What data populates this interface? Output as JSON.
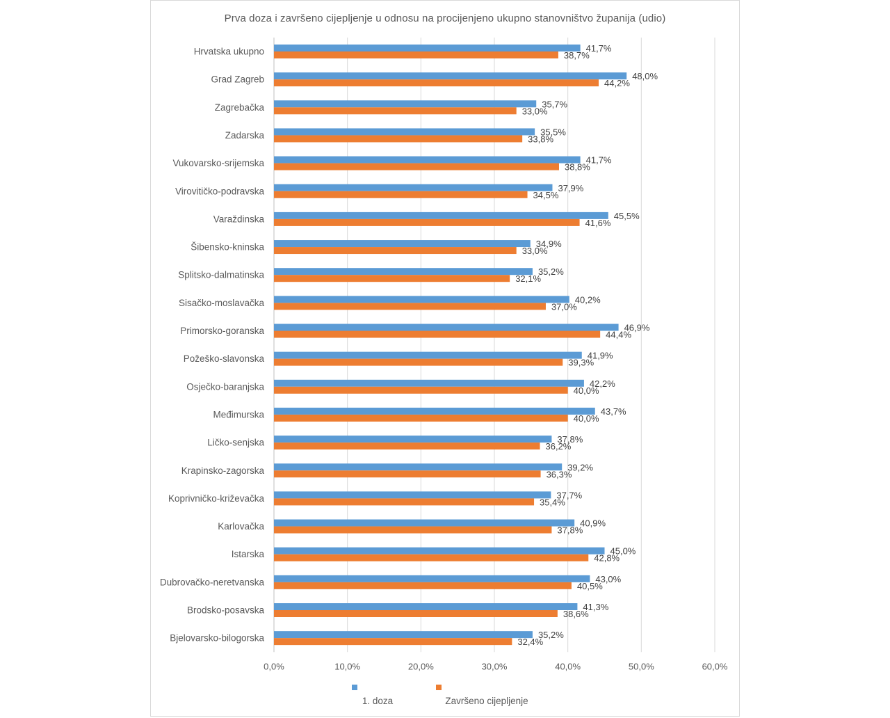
{
  "chart_data": {
    "type": "bar",
    "orientation": "horizontal",
    "title": "Prva doza i završeno cijepljenje u odnosu na procijenjeno ukupno stanovništvo županija (udio)",
    "categories": [
      "Hrvatska ukupno",
      "Grad Zagreb",
      "Zagrebačka",
      "Zadarska",
      "Vukovarsko-srijemska",
      "Virovitičko-podravska",
      "Varaždinska",
      "Šibensko-kninska",
      "Splitsko-dalmatinska",
      "Sisačko-moslavačka",
      "Primorsko-goranska",
      "Požeško-slavonska",
      "Osječko-baranjska",
      "Međimurska",
      "Ličko-senjska",
      "Krapinsko-zagorska",
      "Koprivničko-križevačka",
      "Karlovačka",
      "Istarska",
      "Dubrovačko-neretvanska",
      "Brodsko-posavska",
      "Bjelovarsko-bilogorska"
    ],
    "series": [
      {
        "name": "1. doza",
        "color": "#5b9bd5",
        "values": [
          41.7,
          48.0,
          35.7,
          35.5,
          41.7,
          37.9,
          45.5,
          34.9,
          35.2,
          40.2,
          46.9,
          41.9,
          42.2,
          43.7,
          37.8,
          39.2,
          37.7,
          40.9,
          45.0,
          43.0,
          41.3,
          35.2
        ],
        "labels": [
          "41,7%",
          "48,0%",
          "35,7%",
          "35,5%",
          "41,7%",
          "37,9%",
          "45,5%",
          "34,9%",
          "35,2%",
          "40,2%",
          "46,9%",
          "41,9%",
          "42,2%",
          "43,7%",
          "37,8%",
          "39,2%",
          "37,7%",
          "40,9%",
          "45,0%",
          "43,0%",
          "41,3%",
          "35,2%"
        ]
      },
      {
        "name": "Završeno cijepljenje",
        "color": "#ed7d31",
        "values": [
          38.7,
          44.2,
          33.0,
          33.8,
          38.8,
          34.5,
          41.6,
          33.0,
          32.1,
          37.0,
          44.4,
          39.3,
          40.0,
          40.0,
          36.2,
          36.3,
          35.4,
          37.8,
          42.8,
          40.5,
          38.6,
          32.4
        ],
        "labels": [
          "38,7%",
          "44,2%",
          "33,0%",
          "33,8%",
          "38,8%",
          "34,5%",
          "41,6%",
          "33,0%",
          "32,1%",
          "37,0%",
          "44,4%",
          "39,3%",
          "40,0%",
          "40,0%",
          "36,2%",
          "36,3%",
          "35,4%",
          "37,8%",
          "42,8%",
          "40,5%",
          "38,6%",
          "32,4%"
        ]
      }
    ],
    "x_ticks": [
      0,
      10,
      20,
      30,
      40,
      50,
      60
    ],
    "x_tick_labels": [
      "0,0%",
      "10,0%",
      "20,0%",
      "30,0%",
      "40,0%",
      "50,0%",
      "60,0%"
    ],
    "xlim": [
      0,
      60
    ],
    "xlabel": "",
    "ylabel": "",
    "grid": "vertical",
    "legend_position": "bottom"
  }
}
